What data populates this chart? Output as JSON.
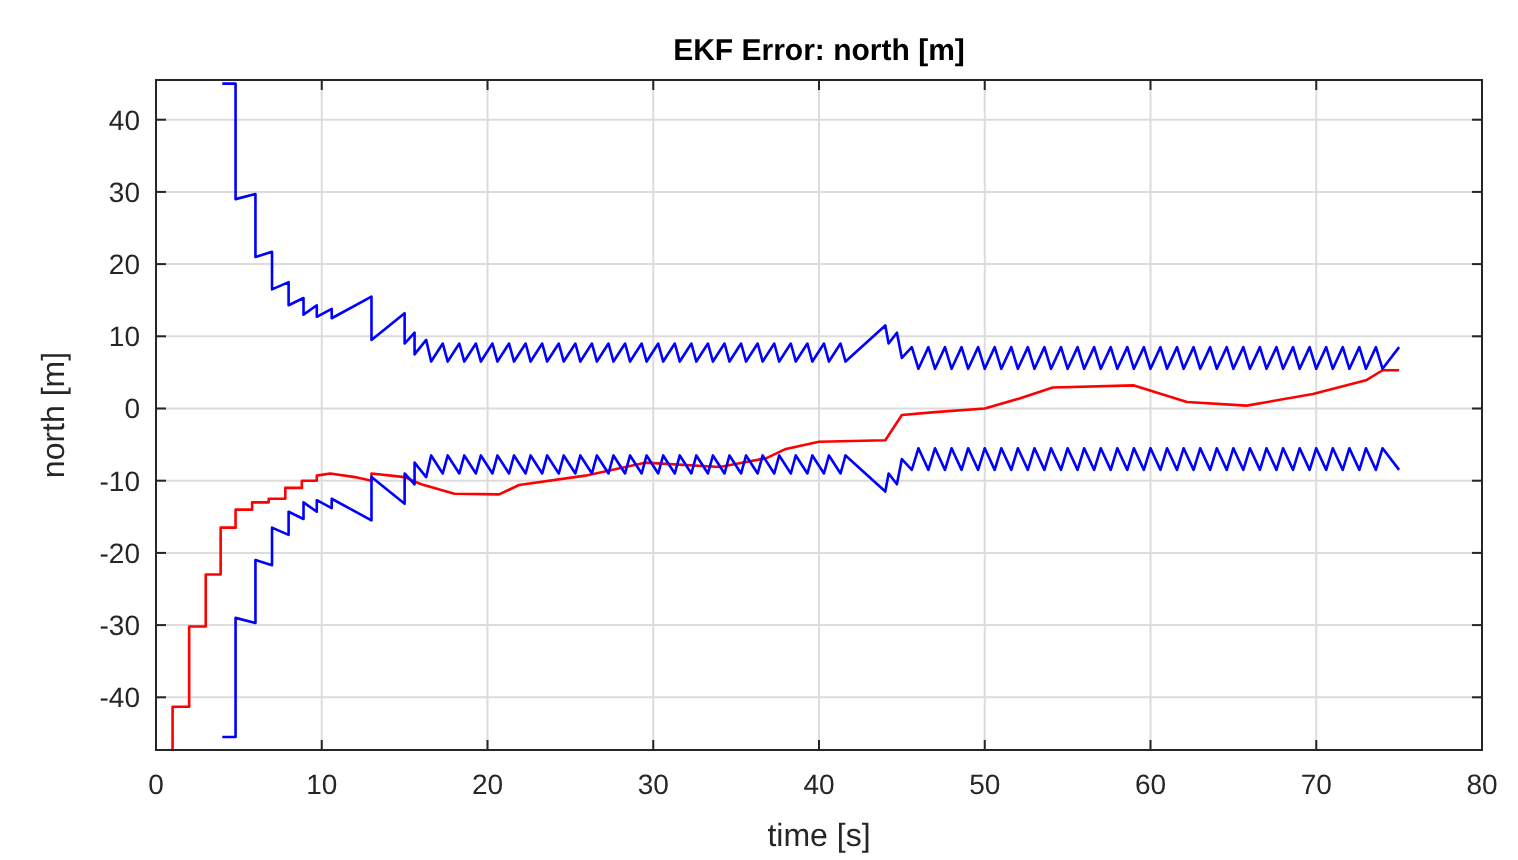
{
  "chart_data": {
    "type": "line",
    "title": "EKF Error: north [m]",
    "xlabel": "time [s]",
    "ylabel": "north [m]",
    "xlim": [
      0,
      80
    ],
    "xticks": [
      0,
      10,
      20,
      30,
      40,
      50,
      60,
      70,
      80
    ],
    "ylim": [
      -47.3,
      45.5
    ],
    "yticks": [
      -40,
      -30,
      -20,
      -10,
      0,
      10,
      20,
      30,
      40
    ],
    "grid": true,
    "line_style": "solid",
    "marker": "none",
    "series": [
      {
        "color": "#ff0000",
        "x": [
          1,
          1,
          2,
          2,
          3,
          3,
          3.9,
          3.9,
          4.8,
          4.8,
          5.8,
          5.8,
          6.8,
          6.8,
          7.8,
          7.8,
          8.8,
          8.8,
          9.7,
          9.7,
          10.5,
          12,
          13,
          13,
          15,
          16,
          18,
          20.7,
          21.9,
          25.9,
          29.5,
          34,
          36.8,
          38,
          40,
          44,
          45,
          47,
          50,
          52.1,
          54.1,
          59,
          62.2,
          65.8,
          69.8,
          73,
          74,
          75
        ],
        "values": [
          -47.3,
          -41.3,
          -41.3,
          -30.2,
          -30.2,
          -23,
          -23,
          -16.5,
          -16.5,
          -14,
          -14,
          -13,
          -13,
          -12.5,
          -12.5,
          -11,
          -11,
          -10,
          -10,
          -9.3,
          -9,
          -9.5,
          -10,
          -9,
          -9.5,
          -10.5,
          -11.8,
          -11.9,
          -10.6,
          -9.3,
          -7.5,
          -8.1,
          -6.9,
          -5.6,
          -4.6,
          -4.4,
          -0.9,
          -0.5,
          0,
          1.4,
          2.9,
          3.2,
          0.9,
          0.4,
          2,
          3.9,
          5.3,
          5.3
        ]
      },
      {
        "color": "#0000ff",
        "x": [
          4,
          4.8,
          4.8,
          6,
          6,
          7,
          7,
          8,
          8,
          8.9,
          8.9,
          9.7,
          9.7,
          10.6,
          10.6,
          13,
          13,
          15,
          15,
          15.6,
          15.6,
          16.3,
          16.6,
          17.3,
          17.6,
          18.3,
          18.6,
          19.3,
          19.6,
          20.3,
          20.6,
          21.3,
          21.6,
          22.3,
          22.6,
          23.3,
          23.6,
          24.3,
          24.6,
          25.3,
          25.6,
          26.3,
          26.6,
          27.3,
          27.6,
          28.3,
          28.6,
          29.3,
          29.6,
          30.3,
          30.6,
          31.3,
          31.6,
          32.3,
          32.6,
          33.3,
          33.6,
          34.3,
          34.6,
          35.3,
          35.6,
          36.3,
          36.6,
          37.3,
          37.6,
          38.3,
          38.6,
          39.3,
          39.6,
          40.3,
          40.6,
          41.3,
          41.6,
          44,
          44.2,
          44.7,
          45,
          45.6,
          46,
          46.6,
          47,
          47.6,
          48,
          48.6,
          49,
          49.6,
          50,
          50.6,
          51,
          51.6,
          52,
          52.6,
          53,
          53.6,
          54,
          54.6,
          55,
          55.6,
          56,
          56.6,
          57,
          57.6,
          58,
          58.6,
          59,
          59.6,
          60,
          60.6,
          61,
          61.6,
          62,
          62.6,
          63,
          63.6,
          64,
          64.6,
          65,
          65.6,
          66,
          66.6,
          67,
          67.6,
          68,
          68.6,
          69,
          69.6,
          70,
          70.6,
          71,
          71.6,
          72,
          72.6,
          73,
          73.6,
          74,
          75
        ],
        "values": [
          45,
          45,
          29,
          29.7,
          21,
          21.7,
          16.5,
          17.5,
          14.3,
          15.3,
          13,
          14.3,
          12.7,
          13.8,
          12.5,
          15.5,
          9.5,
          13.2,
          9,
          10.5,
          7.5,
          9.5,
          6.5,
          9,
          6.5,
          9,
          6.5,
          9,
          6.5,
          9,
          6.5,
          9,
          6.5,
          9,
          6.5,
          9,
          6.5,
          9,
          6.5,
          9,
          6.5,
          9,
          6.5,
          9,
          6.5,
          9,
          6.5,
          9,
          6.5,
          9,
          6.5,
          9,
          6.5,
          9,
          6.5,
          9,
          6.5,
          9,
          6.5,
          9,
          6.5,
          9,
          6.5,
          9,
          6.5,
          9,
          6.5,
          9,
          6.5,
          9,
          6.5,
          9,
          6.5,
          11.5,
          9,
          10.5,
          7,
          8.5,
          5.5,
          8.5,
          5.5,
          8.5,
          5.5,
          8.5,
          5.5,
          8.5,
          5.5,
          8.5,
          5.5,
          8.5,
          5.5,
          8.5,
          5.5,
          8.5,
          5.5,
          8.5,
          5.5,
          8.5,
          5.5,
          8.5,
          5.5,
          8.5,
          5.5,
          8.5,
          5.5,
          8.5,
          5.5,
          8.5,
          5.5,
          8.5,
          5.5,
          8.5,
          5.5,
          8.5,
          5.5,
          8.5,
          5.5,
          8.5,
          5.5,
          8.5,
          5.5,
          8.5,
          5.5,
          8.5,
          5.5,
          8.5,
          5.5,
          8.5,
          5.5,
          8.5,
          5.5,
          8.5,
          5.5,
          8.5,
          5.5,
          8.5
        ]
      },
      {
        "color": "#0000ff",
        "x": [
          4,
          4.8,
          4.8,
          6,
          6,
          7,
          7,
          8,
          8,
          8.9,
          8.9,
          9.7,
          9.7,
          10.6,
          10.6,
          13,
          13,
          15,
          15,
          15.6,
          15.6,
          16.3,
          16.6,
          17.3,
          17.6,
          18.3,
          18.6,
          19.3,
          19.6,
          20.3,
          20.6,
          21.3,
          21.6,
          22.3,
          22.6,
          23.3,
          23.6,
          24.3,
          24.6,
          25.3,
          25.6,
          26.3,
          26.6,
          27.3,
          27.6,
          28.3,
          28.6,
          29.3,
          29.6,
          30.3,
          30.6,
          31.3,
          31.6,
          32.3,
          32.6,
          33.3,
          33.6,
          34.3,
          34.6,
          35.3,
          35.6,
          36.3,
          36.6,
          37.3,
          37.6,
          38.3,
          38.6,
          39.3,
          39.6,
          40.3,
          40.6,
          41.3,
          41.6,
          44,
          44.2,
          44.7,
          45,
          45.6,
          46,
          46.6,
          47,
          47.6,
          48,
          48.6,
          49,
          49.6,
          50,
          50.6,
          51,
          51.6,
          52,
          52.6,
          53,
          53.6,
          54,
          54.6,
          55,
          55.6,
          56,
          56.6,
          57,
          57.6,
          58,
          58.6,
          59,
          59.6,
          60,
          60.6,
          61,
          61.6,
          62,
          62.6,
          63,
          63.6,
          64,
          64.6,
          65,
          65.6,
          66,
          66.6,
          67,
          67.6,
          68,
          68.6,
          69,
          69.6,
          70,
          70.6,
          71,
          71.6,
          72,
          72.6,
          73,
          73.6,
          74,
          75
        ],
        "values": [
          -45.5,
          -45.5,
          -29,
          -29.7,
          -21,
          -21.7,
          -16.5,
          -17.5,
          -14.3,
          -15.3,
          -13,
          -14.3,
          -12.7,
          -13.8,
          -12.5,
          -15.5,
          -9.5,
          -13.2,
          -9,
          -10.5,
          -7.5,
          -9.5,
          -6.5,
          -9,
          -6.5,
          -9,
          -6.5,
          -9,
          -6.5,
          -9,
          -6.5,
          -9,
          -6.5,
          -9,
          -6.5,
          -9,
          -6.5,
          -9,
          -6.5,
          -9,
          -6.5,
          -9,
          -6.5,
          -9,
          -6.5,
          -9,
          -6.5,
          -9,
          -6.5,
          -9,
          -6.5,
          -9,
          -6.5,
          -9,
          -6.5,
          -9,
          -6.5,
          -9,
          -6.5,
          -9,
          -6.5,
          -9,
          -6.5,
          -9,
          -6.5,
          -9,
          -6.5,
          -9,
          -6.5,
          -9,
          -6.5,
          -9,
          -6.5,
          -11.5,
          -9,
          -10.5,
          -7,
          -8.5,
          -5.5,
          -8.5,
          -5.5,
          -8.5,
          -5.5,
          -8.5,
          -5.5,
          -8.5,
          -5.5,
          -8.5,
          -5.5,
          -8.5,
          -5.5,
          -8.5,
          -5.5,
          -8.5,
          -5.5,
          -8.5,
          -5.5,
          -8.5,
          -5.5,
          -8.5,
          -5.5,
          -8.5,
          -5.5,
          -8.5,
          -5.5,
          -8.5,
          -5.5,
          -8.5,
          -5.5,
          -8.5,
          -5.5,
          -8.5,
          -5.5,
          -8.5,
          -5.5,
          -8.5,
          -5.5,
          -8.5,
          -5.5,
          -8.5,
          -5.5,
          -8.5,
          -5.5,
          -8.5,
          -5.5,
          -8.5,
          -5.5,
          -8.5,
          -5.5,
          -8.5,
          -5.5,
          -8.5,
          -5.5,
          -8.5,
          -5.5,
          -8.5
        ]
      }
    ]
  }
}
